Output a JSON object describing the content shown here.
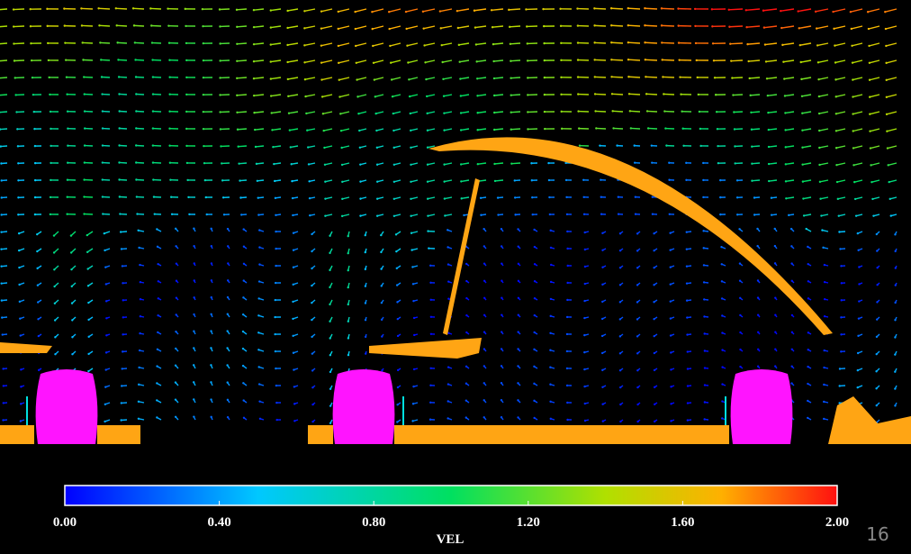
{
  "colorbar": {
    "label": "VEL",
    "range": [
      0,
      2
    ],
    "ticks": [
      {
        "value": 0,
        "label": "0.00"
      },
      {
        "value": 0.4,
        "label": "0.40"
      },
      {
        "value": 0.8,
        "label": "0.80"
      },
      {
        "value": 1.2,
        "label": "1.20"
      },
      {
        "value": 1.6,
        "label": "1.60"
      },
      {
        "value": 2,
        "label": "2.00"
      }
    ]
  },
  "page_number": "16"
}
